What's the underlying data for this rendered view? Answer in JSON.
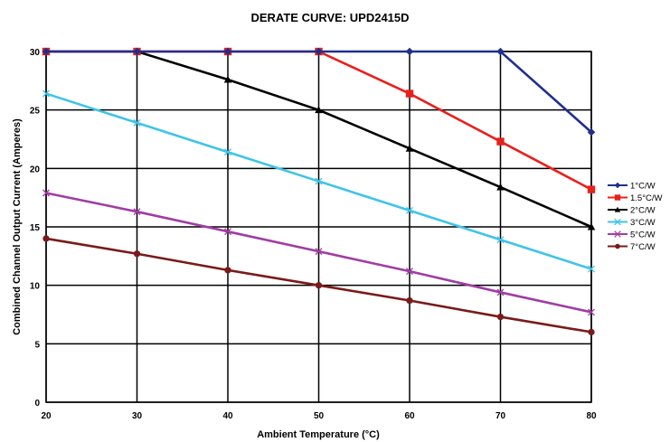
{
  "chart_data": {
    "type": "line",
    "title": "DERATE CURVE: UPD2415D",
    "xlabel": "Ambient Temperature (°C)",
    "ylabel": "Combined Channel Output Current (Amperes)",
    "x": [
      20,
      30,
      40,
      50,
      60,
      70,
      80
    ],
    "xlim": [
      20,
      80
    ],
    "ylim": [
      0,
      30
    ],
    "x_ticks": [
      "20",
      "30",
      "40",
      "50",
      "60",
      "70",
      "80"
    ],
    "y_ticks": [
      "0",
      "5",
      "10",
      "15",
      "20",
      "25",
      "30"
    ],
    "grid": true,
    "legend_position": "right",
    "series": [
      {
        "name": "1°C/W",
        "color": "#1f2f8f",
        "marker": "diamond",
        "values": [
          30,
          30,
          30,
          30,
          30,
          30,
          23.1
        ]
      },
      {
        "name": "1.5°C/W",
        "color": "#e8201c",
        "marker": "square",
        "values": [
          30,
          30,
          30,
          30,
          26.4,
          22.3,
          18.2
        ]
      },
      {
        "name": "2°C/W",
        "color": "#000000",
        "marker": "triangle",
        "values": [
          30,
          30,
          27.6,
          25,
          21.7,
          18.4,
          15
        ]
      },
      {
        "name": "3°C/W",
        "color": "#3fc4e8",
        "marker": "x",
        "values": [
          26.4,
          23.9,
          21.4,
          18.9,
          16.4,
          13.9,
          11.4
        ]
      },
      {
        "name": "5°C/W",
        "color": "#a03da3",
        "marker": "x",
        "values": [
          17.9,
          16.3,
          14.6,
          12.9,
          11.2,
          9.4,
          7.7
        ]
      },
      {
        "name": "7°C/W",
        "color": "#7a1a1a",
        "marker": "circle",
        "values": [
          14,
          12.7,
          11.3,
          10,
          8.7,
          7.3,
          6
        ]
      }
    ]
  }
}
